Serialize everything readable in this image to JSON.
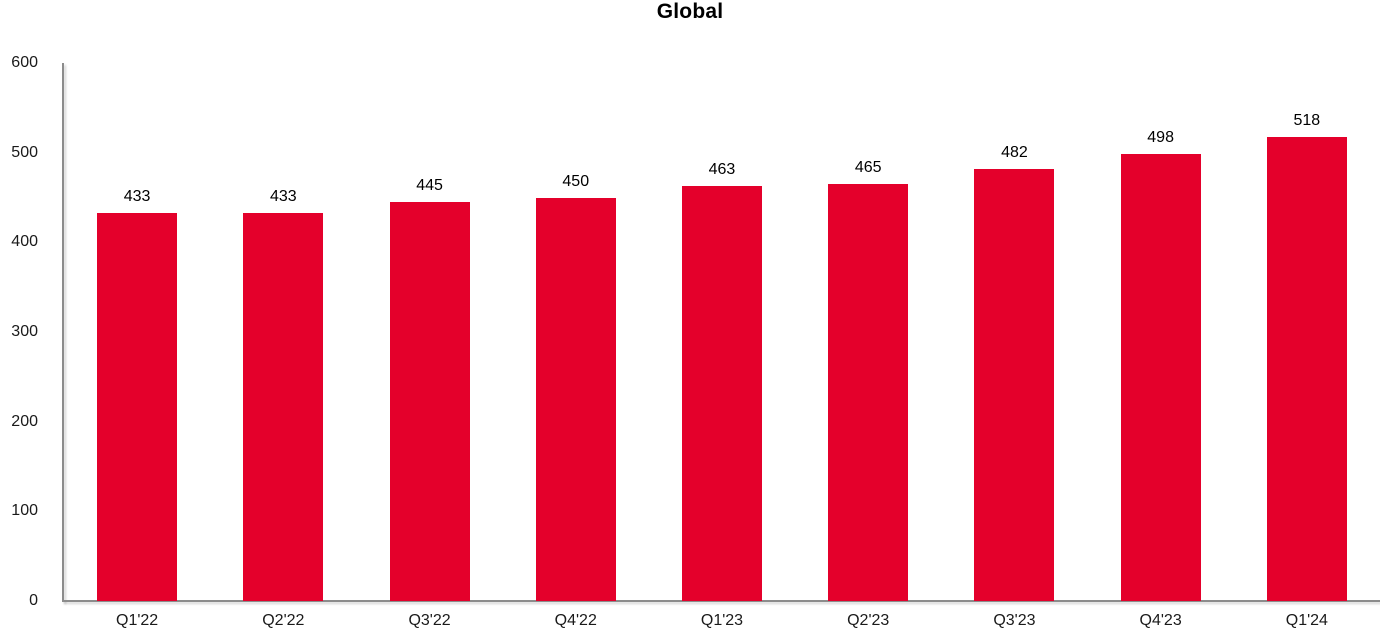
{
  "chart_data": {
    "type": "bar",
    "title": "Global",
    "categories": [
      "Q1'22",
      "Q2'22",
      "Q3'22",
      "Q4'22",
      "Q1'23",
      "Q2'23",
      "Q3'23",
      "Q4'23",
      "Q1'24"
    ],
    "values": [
      433,
      433,
      445,
      450,
      463,
      465,
      482,
      498,
      518
    ],
    "y_ticks": [
      0,
      100,
      200,
      300,
      400,
      500,
      600
    ],
    "ylim": [
      0,
      600
    ],
    "xlabel": "",
    "ylabel": "",
    "grid": false,
    "legend": "none",
    "data_labels": true,
    "colors": {
      "bar": "#e4002b",
      "axis": "#8c8c8c",
      "label_text": "#000000"
    }
  }
}
